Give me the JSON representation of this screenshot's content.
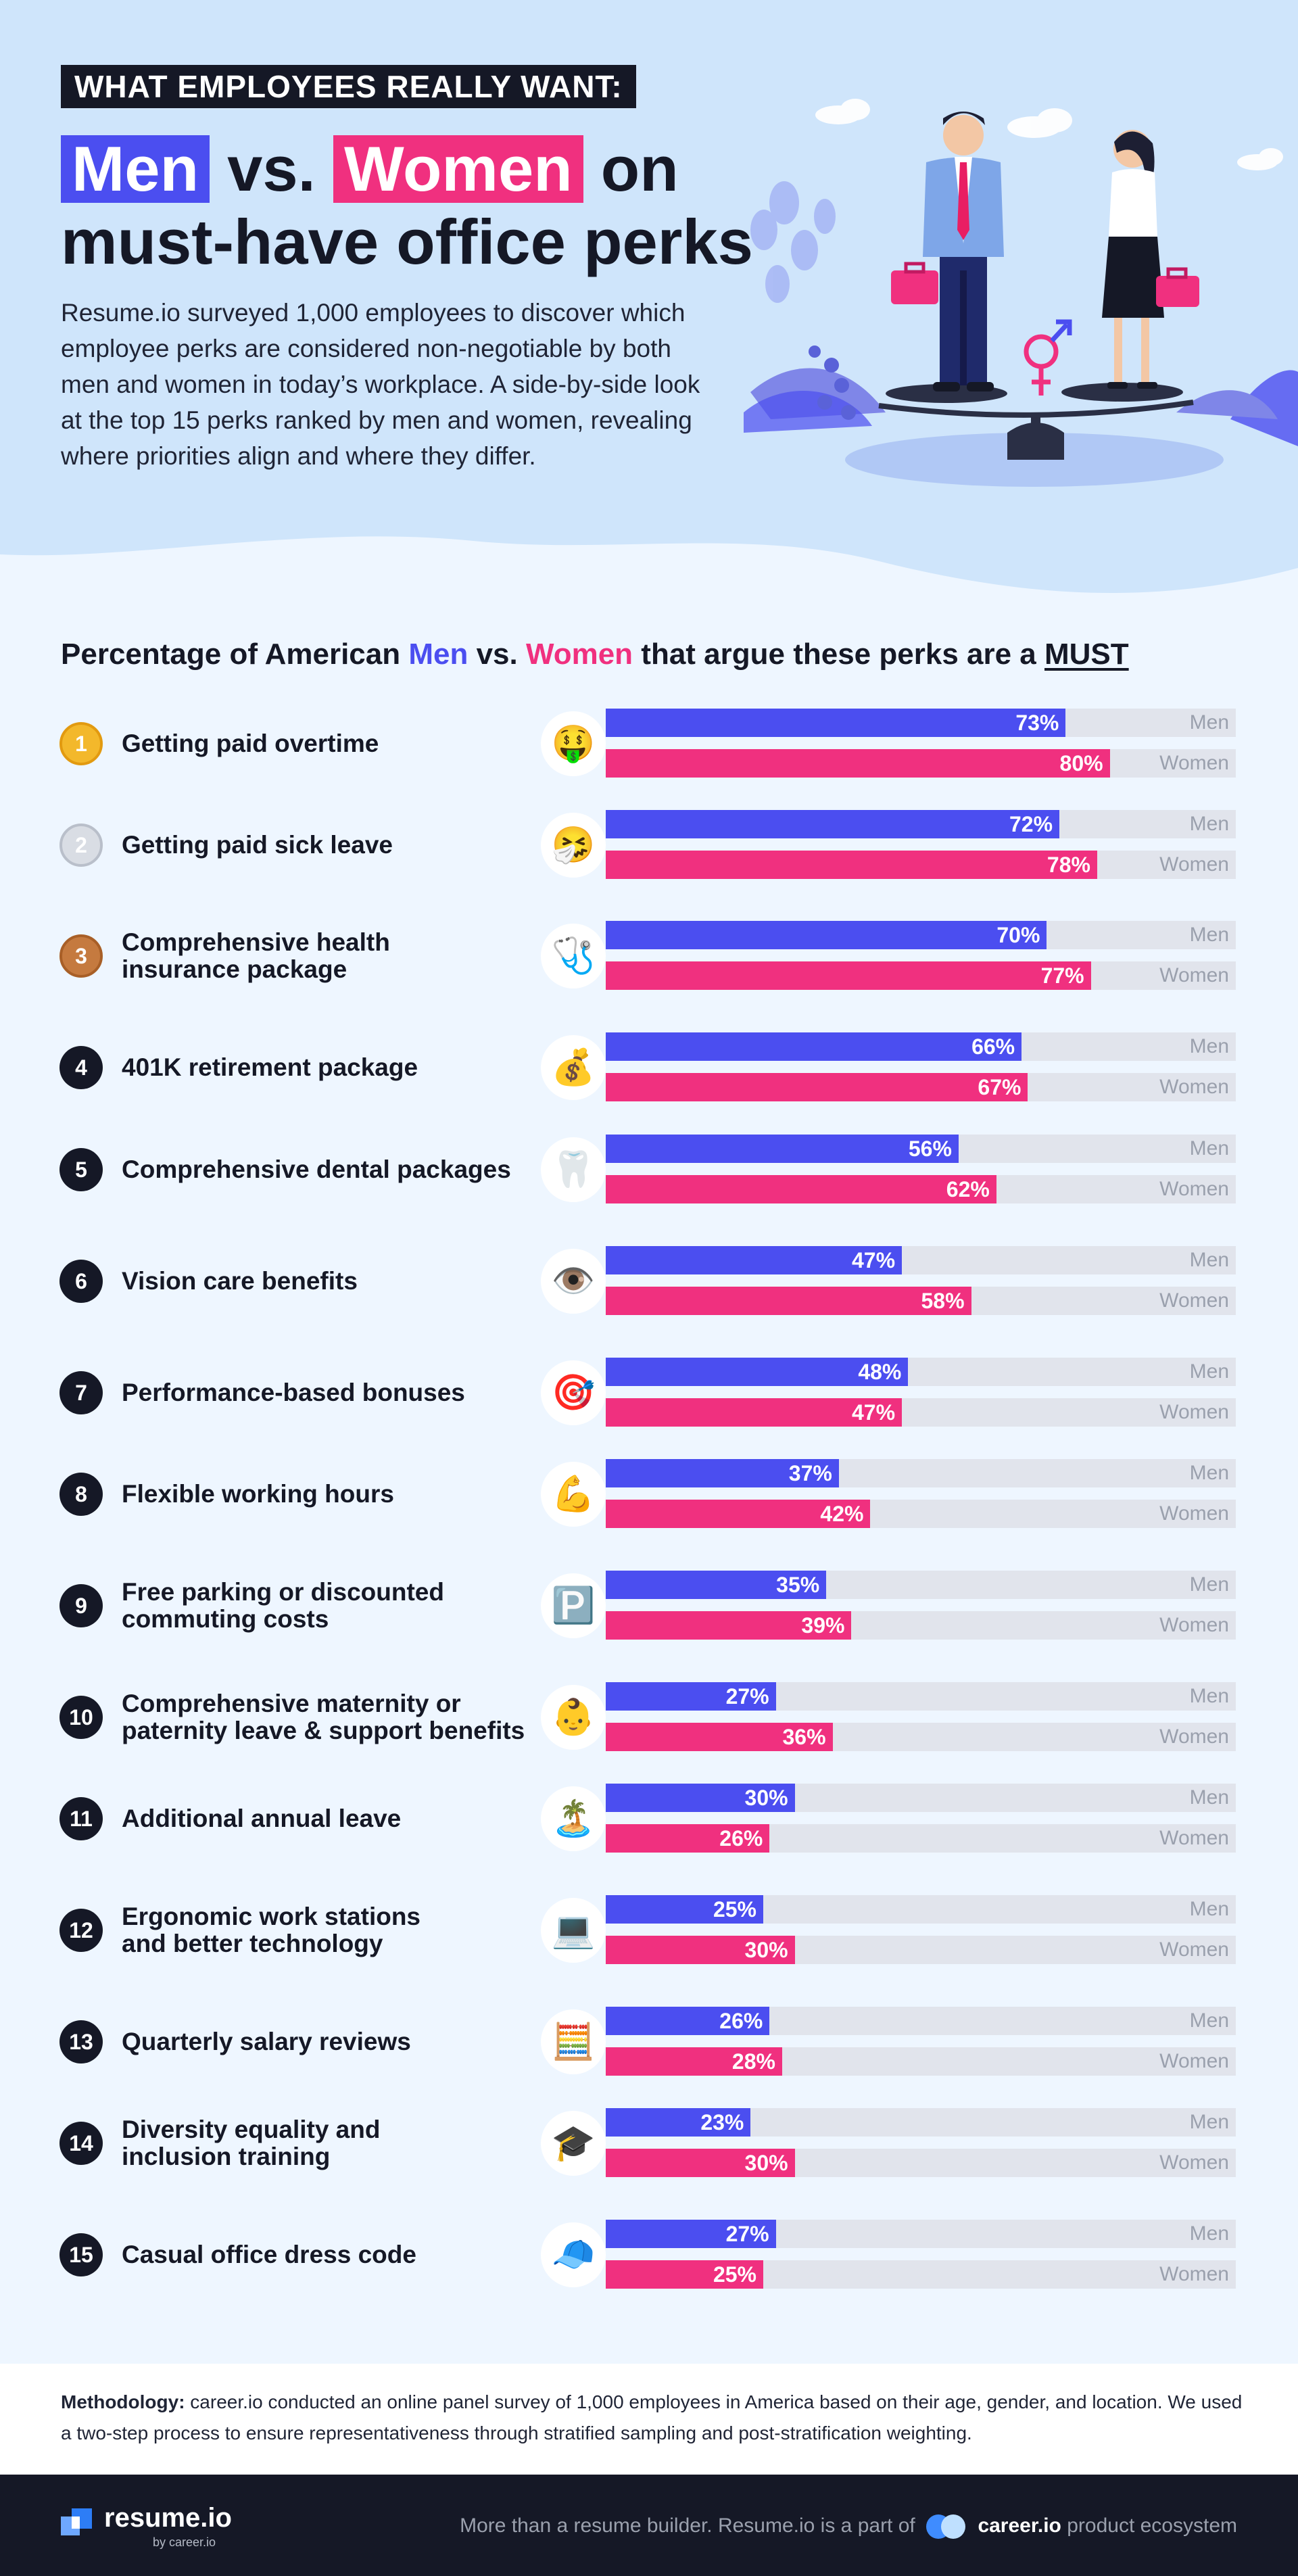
{
  "hero": {
    "tag": "WHAT EMPLOYEES REALLY WANT:",
    "title_men": "Men",
    "title_vs": "vs.",
    "title_women": "Women",
    "title_on": "on",
    "title_line2": "must-have office perks",
    "description": "Resume.io surveyed 1,000 employees to discover which employee perks are considered non-negotiable by both men and women in today’s workplace. A side-by-side look at the top 15 perks ranked by men and women, revealing where priorities align and where they differ."
  },
  "colors": {
    "men": "#4b4ef0",
    "women": "#f0307f",
    "dark": "#151826",
    "track": "#e1e4ec"
  },
  "chart_data": {
    "type": "bar",
    "title_parts": [
      "Percentage of American ",
      "Men",
      " vs. ",
      "Women",
      " that argue these perks are a ",
      "MUST"
    ],
    "categories": [
      "Getting paid overtime",
      "Getting paid sick leave",
      "Comprehensive health insurance package",
      "401K retirement package",
      "Comprehensive dental packages",
      "Vision care benefits",
      "Performance-based bonuses",
      "Flexible working hours",
      "Free parking or discounted commuting costs",
      "Comprehensive maternity or paternity leave & support benefits",
      "Additional annual leave",
      "Ergonomic work stations and better technology",
      "Quarterly salary reviews",
      "Diversity equality and inclusion training",
      "Casual office dress code"
    ],
    "series": [
      {
        "name": "Men",
        "values": [
          73,
          72,
          70,
          66,
          56,
          47,
          48,
          37,
          35,
          27,
          30,
          25,
          26,
          23,
          27
        ]
      },
      {
        "name": "Women",
        "values": [
          80,
          78,
          77,
          67,
          62,
          58,
          47,
          42,
          39,
          36,
          26,
          30,
          28,
          30,
          25
        ]
      }
    ],
    "ylim": [
      0,
      100
    ],
    "value_suffix": "%",
    "orientation": "horizontal"
  },
  "rows": [
    {
      "rank": "1",
      "perk": [
        "Getting paid overtime"
      ],
      "icon": "money-mouth-face-icon",
      "emoji": "🤑",
      "medal": "gold"
    },
    {
      "rank": "2",
      "perk": [
        "Getting paid sick leave"
      ],
      "icon": "sick-face-icon",
      "emoji": "🤧",
      "medal": "silver"
    },
    {
      "rank": "3",
      "perk": [
        "Comprehensive health",
        "insurance package"
      ],
      "icon": "stethoscope-icon",
      "emoji": "🩺",
      "medal": "bronze"
    },
    {
      "rank": "4",
      "perk": [
        "401K retirement package"
      ],
      "icon": "money-bag-icon",
      "emoji": "💰",
      "medal": ""
    },
    {
      "rank": "5",
      "perk": [
        "Comprehensive dental packages"
      ],
      "icon": "tooth-icon",
      "emoji": "🦷",
      "medal": ""
    },
    {
      "rank": "6",
      "perk": [
        "Vision care benefits"
      ],
      "icon": "eye-icon",
      "emoji": "👁️",
      "medal": ""
    },
    {
      "rank": "7",
      "perk": [
        "Performance-based bonuses"
      ],
      "icon": "target-icon",
      "emoji": "🎯",
      "medal": ""
    },
    {
      "rank": "8",
      "perk": [
        "Flexible working hours"
      ],
      "icon": "flexed-arm-icon",
      "emoji": "💪",
      "medal": ""
    },
    {
      "rank": "9",
      "perk": [
        "Free parking or discounted",
        "commuting costs"
      ],
      "icon": "parking-sign-icon",
      "emoji": "🅿️",
      "medal": ""
    },
    {
      "rank": "10",
      "perk": [
        "Comprehensive maternity or",
        "paternity leave & support benefits"
      ],
      "icon": "baby-icon",
      "emoji": "👶",
      "medal": ""
    },
    {
      "rank": "11",
      "perk": [
        "Additional annual leave"
      ],
      "icon": "desert-island-icon",
      "emoji": "🏝️",
      "medal": ""
    },
    {
      "rank": "12",
      "perk": [
        "Ergonomic work stations",
        "and better technology"
      ],
      "icon": "laptop-icon",
      "emoji": "💻",
      "medal": ""
    },
    {
      "rank": "13",
      "perk": [
        "Quarterly salary reviews"
      ],
      "icon": "abacus-icon",
      "emoji": "🧮",
      "medal": ""
    },
    {
      "rank": "14",
      "perk": [
        "Diversity equality and",
        "inclusion training"
      ],
      "icon": "graduation-cap-icon",
      "emoji": "🎓",
      "medal": ""
    },
    {
      "rank": "15",
      "perk": [
        "Casual office dress code"
      ],
      "icon": "cap-icon",
      "emoji": "🧢",
      "medal": ""
    }
  ],
  "series_labels": {
    "men": "Men",
    "women": "Women"
  },
  "methodology": {
    "label": "Methodology:",
    "text": " career.io conducted an online panel survey of 1,000 employees in America based on their age, gender, and location. We used a two-step process to ensure representativeness through stratified sampling and post-stratification weighting."
  },
  "footer": {
    "brand": "resume.io",
    "brand_sub": "by career.io",
    "tagline": "More than a resume builder. Resume.io is a part of",
    "career": "career.io",
    "suffix": "product ecosystem"
  }
}
